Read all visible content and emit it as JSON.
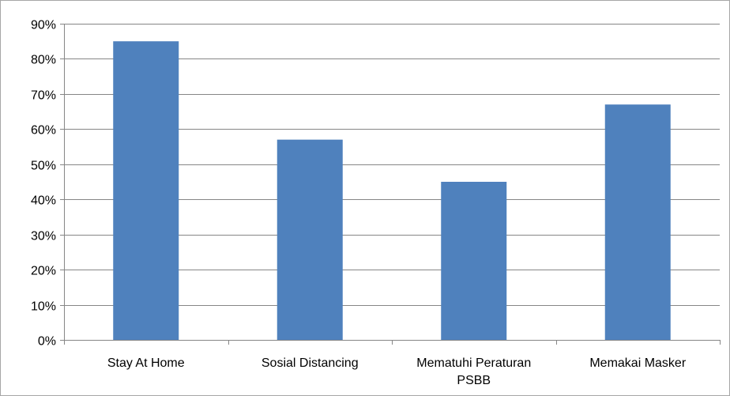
{
  "chart_data": {
    "type": "bar",
    "categories": [
      "Stay At Home",
      "Sosial Distancing",
      "Mematuhi Peraturan PSBB",
      "Memakai Masker"
    ],
    "category_label_lines": [
      [
        "Stay At Home"
      ],
      [
        "Sosial Distancing"
      ],
      [
        "Mematuhi Peraturan",
        "PSBB"
      ],
      [
        "Memakai Masker"
      ]
    ],
    "series": [
      {
        "values": [
          85,
          57,
          45,
          67
        ],
        "color": "#4f81bd"
      }
    ],
    "y_ticks": [
      0,
      10,
      20,
      30,
      40,
      50,
      60,
      70,
      80,
      90
    ],
    "y_tick_labels": [
      "0%",
      "10%",
      "20%",
      "30%",
      "40%",
      "50%",
      "60%",
      "70%",
      "80%",
      "90%"
    ],
    "ylim": [
      0,
      90
    ],
    "y_unit": "%",
    "grid": true,
    "legend": "none",
    "title": "",
    "xlabel": "",
    "ylabel": ""
  }
}
